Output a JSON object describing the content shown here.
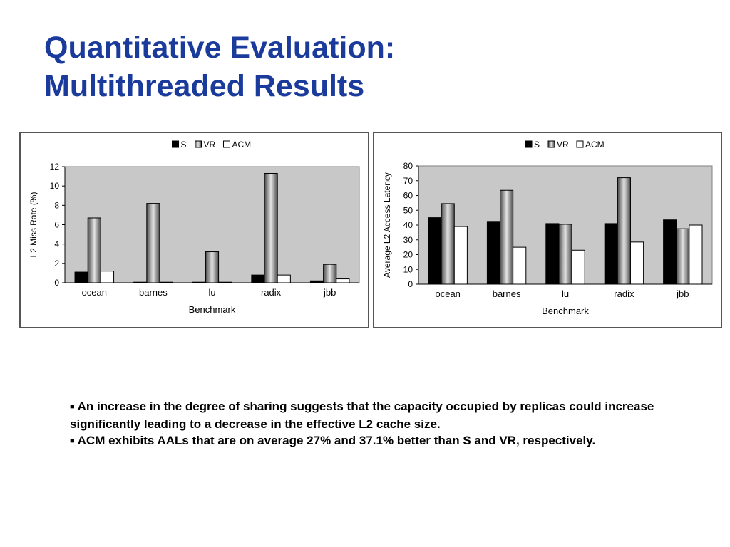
{
  "slide": {
    "title_line1": "Quantitative Evaluation:",
    "title_line2": "Multithreaded Results"
  },
  "bullets": [
    "An increase in the degree of sharing suggests that the capacity occupied by replicas could increase significantly leading to a decrease in the effective L2 cache size.",
    "ACM exhibits AALs that are on average 27% and 37.1% better than S and VR, respectively."
  ],
  "colors": {
    "title": "#1a3a9c",
    "plot_bg": "#c8c8c8",
    "S": "#000000",
    "VR": "#9a9a9a",
    "ACM": "#ffffff"
  },
  "chart_data": [
    {
      "type": "bar",
      "xlabel": "Benchmark",
      "ylabel": "L2 Miss Rate (%)",
      "ylim": [
        0,
        12
      ],
      "yticks": [
        "0",
        "2",
        "4",
        "6",
        "8",
        "10",
        "12"
      ],
      "categories": [
        "ocean",
        "barnes",
        "lu",
        "radix",
        "jbb"
      ],
      "legend_position": "top-center",
      "grid": false,
      "series": [
        {
          "name": "S",
          "values": [
            1.1,
            0,
            0.05,
            0.8,
            0.2
          ]
        },
        {
          "name": "VR",
          "values": [
            6.7,
            8.2,
            3.2,
            11.3,
            1.9
          ]
        },
        {
          "name": "ACM",
          "values": [
            1.2,
            0,
            0.05,
            0.8,
            0.4
          ]
        }
      ]
    },
    {
      "type": "bar",
      "xlabel": "Benchmark",
      "ylabel": "Average L2 Access Latency",
      "ylim": [
        0,
        80
      ],
      "yticks": [
        "0",
        "10",
        "20",
        "30",
        "40",
        "50",
        "60",
        "70",
        "80"
      ],
      "categories": [
        "ocean",
        "barnes",
        "lu",
        "radix",
        "jbb"
      ],
      "legend_position": "top-center",
      "grid": false,
      "series": [
        {
          "name": "S",
          "values": [
            45,
            42.5,
            41,
            41,
            43.5
          ]
        },
        {
          "name": "VR",
          "values": [
            54.5,
            63.5,
            40.5,
            72,
            37.5
          ]
        },
        {
          "name": "ACM",
          "values": [
            39,
            25,
            23,
            28.5,
            40
          ]
        }
      ]
    }
  ]
}
